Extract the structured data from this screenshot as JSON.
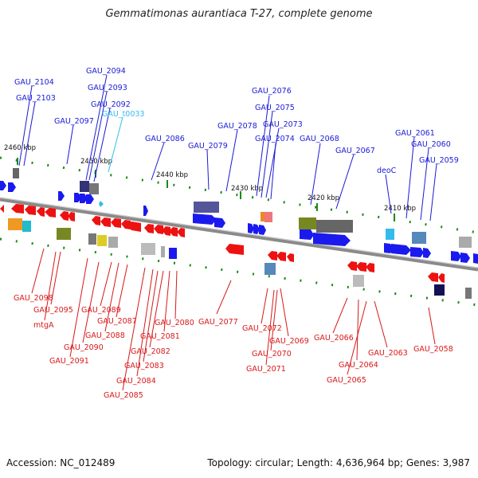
{
  "header": {
    "title": "Gemmatimonas aurantiaca T-27, complete genome"
  },
  "footer": {
    "accession": "Accession: NC_012489",
    "summary": "Topology: circular; Length: 4,636,964 bp; Genes: 3,987"
  },
  "colors": {
    "forward_label": "#1a1ad6",
    "reverse_label": "#d81818",
    "trna_label": "#33bbee",
    "forward_gene": "#1a1aee",
    "reverse_gene": "#ee1111",
    "backbone": "#8a8a8a",
    "tick": "#1a8a1a"
  },
  "diagram": {
    "scale_labels": [
      "2460 kbp",
      "2450 kbp",
      "2440 kbp",
      "2430 kbp",
      "2420 kbp",
      "2410 kbp"
    ],
    "forward_labels": [
      "GAU_2104",
      "GAU_2103",
      "GAU_2094",
      "GAU_2093",
      "GAU_2092",
      "GAU_2097",
      "GAU_2086",
      "GAU_2079",
      "GAU_2078",
      "GAU_2076",
      "GAU_2075",
      "GAU_2073",
      "GAU_2074",
      "GAU_2068",
      "GAU_2067",
      "GAU_2061",
      "GAU_2060",
      "GAU_2059",
      "deoC"
    ],
    "trna_labels": [
      "GAU_t0033"
    ],
    "reverse_labels": [
      "GAU_2098",
      "GAU_2095",
      "mtgA",
      "GAU_2089",
      "GAU_2087",
      "GAU_2088",
      "GAU_2090",
      "GAU_2091",
      "GAU_2080",
      "GAU_2081",
      "GAU_2082",
      "GAU_2083",
      "GAU_2084",
      "GAU_2085",
      "GAU_2077",
      "GAU_2072",
      "GAU_2069",
      "GAU_2070",
      "GAU_2071",
      "GAU_2066",
      "GAU_2064",
      "GAU_2065",
      "GAU_2063",
      "GAU_2058"
    ]
  }
}
